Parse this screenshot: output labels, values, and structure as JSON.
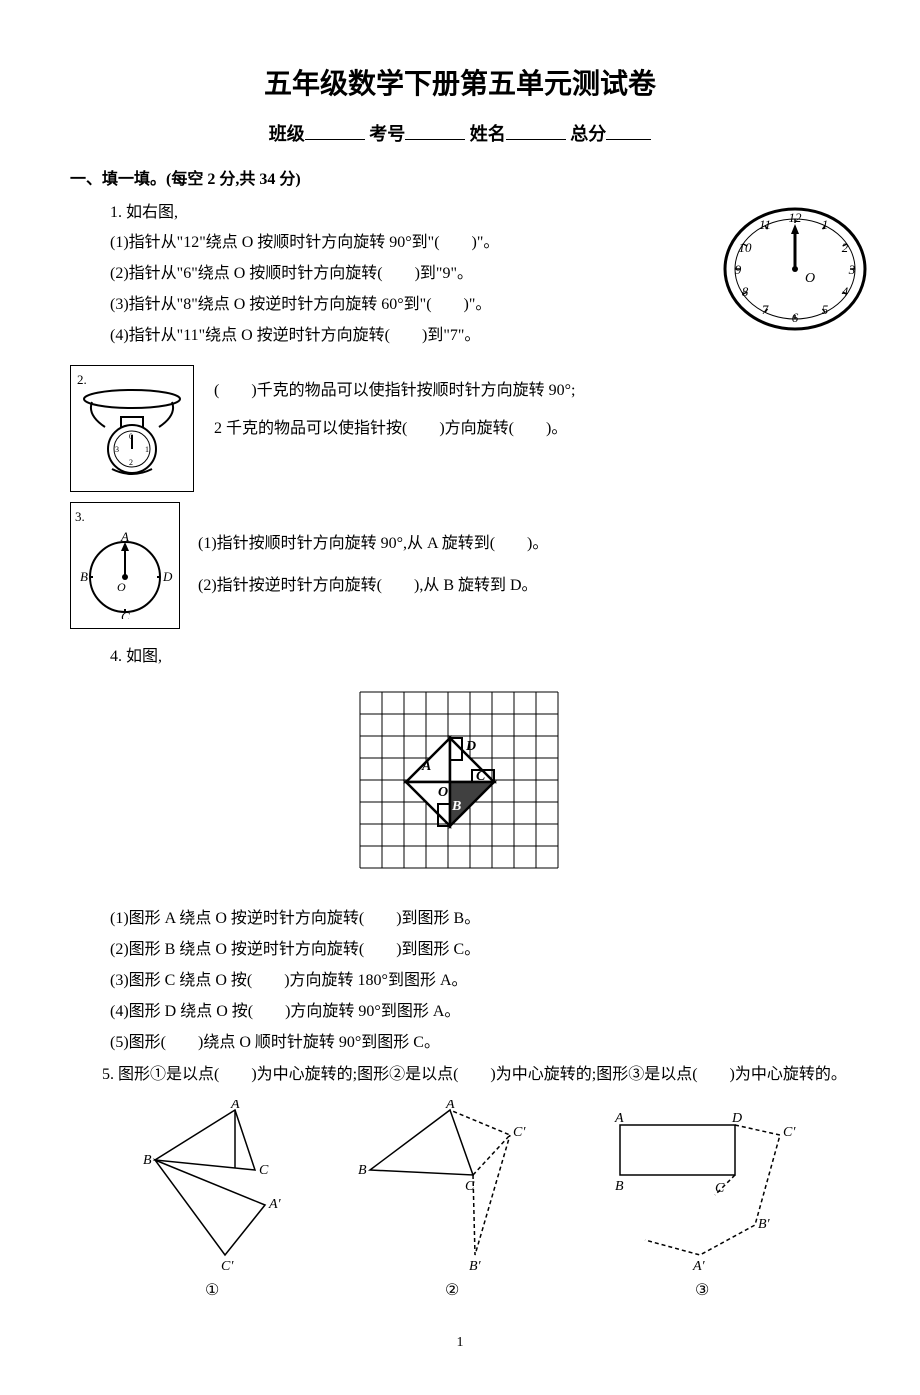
{
  "title": "五年级数学下册第五单元测试卷",
  "header": {
    "class_label": "班级",
    "exam_no_label": "考号",
    "name_label": "姓名",
    "total_label": "总分"
  },
  "section1_head": "一、填一填。(每空 2 分,共 34 分)",
  "q1": {
    "head": "1. 如右图,",
    "line1": "(1)指针从\"12\"绕点 O 按顺时针方向旋转 90°到\"(　　)\"。",
    "line2": "(2)指针从\"6\"绕点 O 按顺时针方向旋转(　　)到\"9\"。",
    "line3": "(3)指针从\"8\"绕点 O 按逆时针方向旋转 60°到\"(　　)\"。",
    "line4": "(4)指针从\"11\"绕点 O 按逆时针方向旋转(　　)到\"7\"。"
  },
  "clock": {
    "numbers": [
      "12",
      "1",
      "2",
      "3",
      "4",
      "5",
      "6",
      "7",
      "8",
      "9",
      "10",
      "11"
    ],
    "center_label": "O",
    "stroke": "#000",
    "bg": "#fff"
  },
  "q2": {
    "label": "2.",
    "line1": "(　　)千克的物品可以使指针按顺时针方向旋转 90°;",
    "line2": "2 千克的物品可以使指针按(　　)方向旋转(　　)。"
  },
  "scale": {
    "max": 4,
    "stroke": "#000"
  },
  "q3": {
    "label": "3.",
    "line1": "(1)指针按顺时针方向旋转 90°,从 A 旋转到(　　)。",
    "line2": "(2)指针按逆时针方向旋转(　　),从 B 旋转到 D。",
    "labels": {
      "A": "A",
      "B": "B",
      "C": "C",
      "D": "D",
      "O": "O"
    }
  },
  "q4": {
    "head": "4. 如图,",
    "line1": "(1)图形 A 绕点 O 按逆时针方向旋转(　　)到图形 B。",
    "line2": "(2)图形 B 绕点 O 按逆时针方向旋转(　　)到图形 C。",
    "line3": "(3)图形 C 绕点 O 按(　　)方向旋转 180°到图形 A。",
    "line4": "(4)图形 D 绕点 O 按(　　)方向旋转 90°到图形 A。",
    "line5": "(5)图形(　　)绕点 O 顺时针旋转 90°到图形 C。",
    "grid": {
      "cols": 9,
      "rows": 8,
      "cell": 22,
      "stroke": "#000",
      "labels": {
        "A": "A",
        "B": "B",
        "C": "C",
        "D": "D",
        "O": "O"
      }
    }
  },
  "q5": {
    "text": "　　5. 图形①是以点(　　)为中心旋转的;图形②是以点(　　)为中心旋转的;图形③是以点(　　)为中心旋转的。",
    "fig_labels": {
      "c1": "①",
      "c2": "②",
      "c3": "③"
    },
    "pt": {
      "A": "A",
      "B": "B",
      "C": "C",
      "Ap": "A′",
      "Bp": "B′",
      "Cp": "C′",
      "D": "D"
    },
    "stroke": "#000"
  },
  "page_num": "1"
}
